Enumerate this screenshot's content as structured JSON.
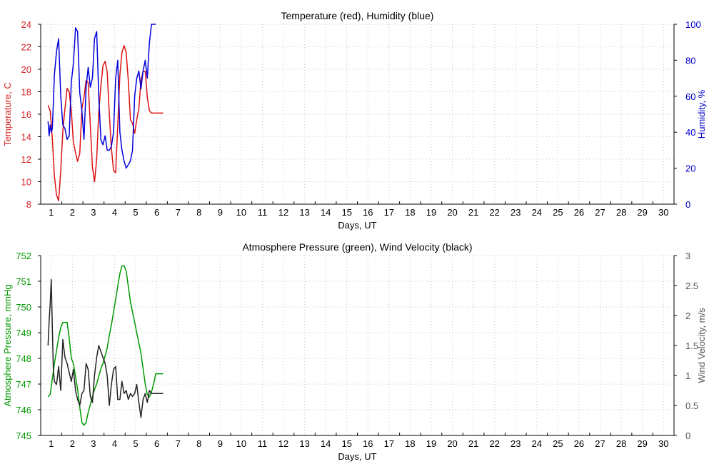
{
  "chart_data": [
    {
      "type": "line",
      "title": "Temperature (red), Humidity (blue)",
      "xlabel": "Days, UT",
      "ylabel": "Temperature, C",
      "y2label": "Humidity, %",
      "xlim": [
        0.5,
        30.5
      ],
      "ylim": [
        8,
        24
      ],
      "y2lim": [
        0,
        100
      ],
      "xticks": [
        "1",
        "2",
        "3",
        "4",
        "5",
        "6",
        "7",
        "8",
        "9",
        "10",
        "11",
        "12",
        "13",
        "14",
        "15",
        "16",
        "17",
        "18",
        "19",
        "20",
        "21",
        "22",
        "23",
        "24",
        "25",
        "26",
        "27",
        "28",
        "29",
        "30"
      ],
      "yticks": [
        "8",
        "10",
        "12",
        "14",
        "16",
        "18",
        "20",
        "22",
        "24"
      ],
      "y2ticks": [
        "0",
        "20",
        "40",
        "60",
        "80",
        "100"
      ],
      "grid": true,
      "colors": {
        "left": "#d62728",
        "right": "#0000cc",
        "temperature": "#dd1111",
        "humidity": "#0000dd"
      },
      "series": [
        {
          "axis": "left",
          "x": [
            0.85,
            0.95,
            1.05,
            1.15,
            1.25,
            1.35,
            1.45,
            1.55,
            1.65,
            1.75,
            1.85,
            1.95,
            2.05,
            2.15,
            2.25,
            2.35,
            2.45,
            2.55,
            2.65,
            2.75,
            2.85,
            2.95,
            3.05,
            3.15,
            3.25,
            3.35,
            3.45,
            3.55,
            3.65,
            3.75,
            3.85,
            3.95,
            4.05,
            4.15,
            4.25,
            4.35,
            4.45,
            4.55,
            4.65,
            4.75,
            4.85,
            4.95,
            5.05,
            5.15,
            5.25,
            5.35,
            5.45,
            5.55,
            5.65,
            5.75,
            5.85,
            5.95,
            6.05,
            6.15,
            6.3
          ],
          "values": [
            16.8,
            16.3,
            13.8,
            10.5,
            8.8,
            8.3,
            11.0,
            14.5,
            16.5,
            18.3,
            18.0,
            16.3,
            13.5,
            12.6,
            11.8,
            12.5,
            16.5,
            17.5,
            19.0,
            18.8,
            15.0,
            11.3,
            10.0,
            12.0,
            16.2,
            18.5,
            20.3,
            20.7,
            19.8,
            16.0,
            13.0,
            11.0,
            10.8,
            15.0,
            19.5,
            21.5,
            22.1,
            21.5,
            19.0,
            15.5,
            15.2,
            14.3,
            15.5,
            16.5,
            19.0,
            19.8,
            19.8,
            17.5,
            16.3,
            16.1,
            16.1,
            16.1,
            16.1,
            16.1,
            16.1
          ]
        },
        {
          "axis": "right",
          "x": [
            0.85,
            0.9,
            0.95,
            1.0,
            1.05,
            1.1,
            1.15,
            1.25,
            1.35,
            1.45,
            1.55,
            1.65,
            1.75,
            1.85,
            1.95,
            2.05,
            2.15,
            2.25,
            2.35,
            2.45,
            2.55,
            2.65,
            2.75,
            2.85,
            2.95,
            3.05,
            3.15,
            3.25,
            3.35,
            3.45,
            3.55,
            3.65,
            3.75,
            3.85,
            3.95,
            4.05,
            4.15,
            4.25,
            4.35,
            4.45,
            4.55,
            4.65,
            4.75,
            4.85,
            4.95,
            5.05,
            5.15,
            5.25,
            5.35,
            5.45,
            5.55,
            5.65,
            5.75,
            5.85,
            5.95
          ],
          "values": [
            46,
            38,
            44,
            40,
            42,
            56,
            72,
            85,
            92,
            60,
            44,
            42,
            36,
            38,
            68,
            78,
            98,
            96,
            62,
            52,
            36,
            65,
            76,
            65,
            70,
            92,
            96,
            60,
            36,
            33,
            38,
            30,
            30,
            32,
            40,
            70,
            80,
            40,
            30,
            24,
            20,
            22,
            24,
            30,
            60,
            70,
            74,
            64,
            74,
            80,
            70,
            90,
            100,
            100,
            100
          ]
        }
      ]
    },
    {
      "type": "line",
      "title": "Atmosphere Pressure (green), Wind Velocity (black)",
      "xlabel": "Days, UT",
      "ylabel": "Atmosphere Pressure, mmHg",
      "y2label": "Wind Velocity, m/s",
      "xlim": [
        0.5,
        30.5
      ],
      "ylim": [
        745,
        752
      ],
      "y2lim": [
        0,
        3
      ],
      "xticks": [
        "1",
        "2",
        "3",
        "4",
        "5",
        "6",
        "7",
        "8",
        "9",
        "10",
        "11",
        "12",
        "13",
        "14",
        "15",
        "16",
        "17",
        "18",
        "19",
        "20",
        "21",
        "22",
        "23",
        "24",
        "25",
        "26",
        "27",
        "28",
        "29",
        "30"
      ],
      "yticks": [
        "745",
        "746",
        "747",
        "748",
        "749",
        "750",
        "751",
        "752"
      ],
      "y2ticks": [
        "0",
        "0.5",
        "1",
        "1.5",
        "2",
        "2.5",
        "3"
      ],
      "grid": true,
      "colors": {
        "left": "#009900",
        "right": "#555555",
        "pressure": "#009900",
        "wind": "#222222"
      },
      "series": [
        {
          "axis": "left",
          "x": [
            0.85,
            0.95,
            1.05,
            1.15,
            1.25,
            1.35,
            1.45,
            1.55,
            1.65,
            1.75,
            1.85,
            1.95,
            2.05,
            2.15,
            2.25,
            2.35,
            2.45,
            2.55,
            2.65,
            2.75,
            2.85,
            2.95,
            3.05,
            3.15,
            3.25,
            3.35,
            3.45,
            3.55,
            3.65,
            3.75,
            3.85,
            3.95,
            4.05,
            4.15,
            4.25,
            4.35,
            4.45,
            4.55,
            4.65,
            4.75,
            4.85,
            4.95,
            5.05,
            5.15,
            5.25,
            5.35,
            5.45,
            5.55,
            5.65,
            5.75,
            5.85,
            5.95,
            6.05,
            6.15,
            6.3
          ],
          "values": [
            746.5,
            746.6,
            747.2,
            747.8,
            748.3,
            748.8,
            749.2,
            749.4,
            749.4,
            749.4,
            748.8,
            748.0,
            747.8,
            747.3,
            746.8,
            746.1,
            745.5,
            745.4,
            745.5,
            745.9,
            746.2,
            746.5,
            746.8,
            747.0,
            747.3,
            747.6,
            747.8,
            748.1,
            748.4,
            748.9,
            749.3,
            749.8,
            750.3,
            750.8,
            751.3,
            751.6,
            751.6,
            751.4,
            750.8,
            750.2,
            749.8,
            749.4,
            749.0,
            748.6,
            748.2,
            747.6,
            747.0,
            746.6,
            746.5,
            746.7,
            747.0,
            747.4,
            747.4,
            747.4,
            747.4
          ]
        },
        {
          "axis": "right",
          "x": [
            0.85,
            0.9,
            0.95,
            1.0,
            1.05,
            1.1,
            1.15,
            1.25,
            1.35,
            1.45,
            1.55,
            1.65,
            1.75,
            1.85,
            1.95,
            2.05,
            2.15,
            2.25,
            2.35,
            2.45,
            2.55,
            2.65,
            2.75,
            2.85,
            2.95,
            3.05,
            3.15,
            3.25,
            3.35,
            3.45,
            3.55,
            3.65,
            3.75,
            3.85,
            3.95,
            4.05,
            4.15,
            4.25,
            4.35,
            4.45,
            4.55,
            4.65,
            4.75,
            4.85,
            4.95,
            5.05,
            5.15,
            5.25,
            5.35,
            5.45,
            5.55,
            5.65,
            5.75,
            5.85,
            5.95,
            6.05,
            6.15,
            6.3
          ],
          "values": [
            1.5,
            1.9,
            2.2,
            2.6,
            1.8,
            1.1,
            0.9,
            0.85,
            1.15,
            0.75,
            1.6,
            1.3,
            1.2,
            1.05,
            0.9,
            1.1,
            0.75,
            0.6,
            0.5,
            0.7,
            0.75,
            1.2,
            1.1,
            0.65,
            0.55,
            1.0,
            1.3,
            1.5,
            1.4,
            1.3,
            1.2,
            1.0,
            0.5,
            0.85,
            1.1,
            1.15,
            0.6,
            0.6,
            0.9,
            0.7,
            0.75,
            0.6,
            0.7,
            0.65,
            0.7,
            0.85,
            0.55,
            0.3,
            0.6,
            0.7,
            0.55,
            0.75,
            0.7,
            0.7,
            0.7,
            0.7,
            0.7,
            0.7
          ]
        }
      ]
    }
  ]
}
